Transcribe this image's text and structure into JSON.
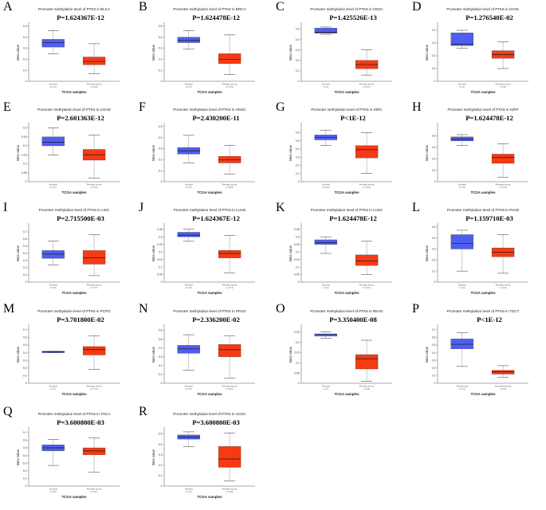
{
  "colors": {
    "normal_box": "#4f5ef0",
    "tumor_box": "#f63a14",
    "median": "#1a1a1a",
    "whisker": "#333333",
    "axis": "#555555"
  },
  "chart_data": [
    {
      "letter": "A",
      "type": "box",
      "title": "Promoter methylation level of PTK6 in BLCA",
      "pvalue": "P=1.624367E-12",
      "ylabel": "Beta value",
      "xlabel": "TCGA samples",
      "categories": [
        {
          "name": "Normal",
          "n": "(n=21)"
        },
        {
          "name": "Primary tumor",
          "n": "(n=418)"
        }
      ],
      "yticks": [
        0,
        0.1,
        0.2,
        0.3,
        0.4,
        0.5
      ],
      "ylim": [
        0,
        0.52
      ],
      "boxes": [
        {
          "min": 0.25,
          "q1": 0.31,
          "median": 0.35,
          "q3": 0.38,
          "max": 0.46
        },
        {
          "min": 0.07,
          "q1": 0.15,
          "median": 0.18,
          "q3": 0.22,
          "max": 0.34
        }
      ]
    },
    {
      "letter": "B",
      "type": "box",
      "title": "Promoter methylation level of PTK6 in BRCA",
      "pvalue": "P=1.624478E-12",
      "ylabel": "Beta value",
      "xlabel": "TCGA samples",
      "categories": [
        {
          "name": "Normal",
          "n": "(n=97)"
        },
        {
          "name": "Primary tumor",
          "n": "(n=793)"
        }
      ],
      "yticks": [
        0,
        0.1,
        0.2,
        0.3,
        0.4,
        0.5
      ],
      "ylim": [
        0,
        0.52
      ],
      "boxes": [
        {
          "min": 0.29,
          "q1": 0.35,
          "median": 0.37,
          "q3": 0.4,
          "max": 0.46
        },
        {
          "min": 0.06,
          "q1": 0.16,
          "median": 0.2,
          "q3": 0.25,
          "max": 0.42
        }
      ]
    },
    {
      "letter": "C",
      "type": "box",
      "title": "Promoter methylation level of PTK6 in CESC",
      "pvalue": "P=1.425526E-13",
      "ylabel": "Beta value",
      "xlabel": "TCGA samples",
      "categories": [
        {
          "name": "Normal",
          "n": "(n=3)"
        },
        {
          "name": "Primary tumor",
          "n": "(n=307)"
        }
      ],
      "yticks": [
        0,
        0.1,
        0.2,
        0.3,
        0.4,
        0.5
      ],
      "ylim": [
        0,
        0.55
      ],
      "boxes": [
        {
          "min": 0.45,
          "q1": 0.46,
          "median": 0.47,
          "q3": 0.51,
          "max": 0.52
        },
        {
          "min": 0.06,
          "q1": 0.12,
          "median": 0.16,
          "q3": 0.2,
          "max": 0.3
        }
      ]
    },
    {
      "letter": "D",
      "type": "box",
      "title": "Promoter methylation level of PTK6 in CHOL",
      "pvalue": "P=1.276540E-02",
      "ylabel": "Beta value",
      "xlabel": "TCGA samples",
      "categories": [
        {
          "name": "Normal",
          "n": "(n=9)"
        },
        {
          "name": "Primary tumor",
          "n": "(n=36)"
        }
      ],
      "yticks": [
        0,
        0.1,
        0.2,
        0.3,
        0.4
      ],
      "ylim": [
        0,
        0.45
      ],
      "boxes": [
        {
          "min": 0.26,
          "q1": 0.28,
          "median": 0.29,
          "q3": 0.38,
          "max": 0.4
        },
        {
          "min": 0.1,
          "q1": 0.18,
          "median": 0.21,
          "q3": 0.24,
          "max": 0.31
        }
      ]
    },
    {
      "letter": "E",
      "type": "box",
      "title": "Promoter methylation level of PTK6 in COAD",
      "pvalue": "P=2.601363E-12",
      "ylabel": "Beta value",
      "xlabel": "TCGA samples",
      "categories": [
        {
          "name": "Normal",
          "n": "(n=37)"
        },
        {
          "name": "Primary tumor",
          "n": "(n=313)"
        }
      ],
      "yticks": [
        0,
        0.05,
        0.1,
        0.15,
        0.2,
        0.25,
        0.3
      ],
      "ylim": [
        0,
        0.32
      ],
      "boxes": [
        {
          "min": 0.15,
          "q1": 0.2,
          "median": 0.22,
          "q3": 0.25,
          "max": 0.3
        },
        {
          "min": 0.02,
          "q1": 0.12,
          "median": 0.15,
          "q3": 0.18,
          "max": 0.26
        }
      ]
    },
    {
      "letter": "F",
      "type": "box",
      "title": "Promoter methylation level of PTK6 in HNSC",
      "pvalue": "P=2.430200E-11",
      "ylabel": "Beta value",
      "xlabel": "TCGA samples",
      "categories": [
        {
          "name": "Normal",
          "n": "(n=50)"
        },
        {
          "name": "Primary tumor",
          "n": "(n=528)"
        }
      ],
      "yticks": [
        0,
        0.1,
        0.2,
        0.3,
        0.4,
        0.5
      ],
      "ylim": [
        0,
        0.52
      ],
      "boxes": [
        {
          "min": 0.17,
          "q1": 0.25,
          "median": 0.28,
          "q3": 0.31,
          "max": 0.42
        },
        {
          "min": 0.07,
          "q1": 0.17,
          "median": 0.2,
          "q3": 0.23,
          "max": 0.33
        }
      ]
    },
    {
      "letter": "G",
      "type": "box",
      "title": "Promoter methylation level of PTK6 in KIRC",
      "pvalue": "P<1E-12",
      "ylabel": "Beta value",
      "xlabel": "TCGA samples",
      "categories": [
        {
          "name": "Normal",
          "n": "(n=160)"
        },
        {
          "name": "Primary tumor",
          "n": "(n=324)"
        }
      ],
      "yticks": [
        0,
        0.1,
        0.2,
        0.3,
        0.4,
        0.5,
        0.6
      ],
      "ylim": [
        0,
        0.7
      ],
      "boxes": [
        {
          "min": 0.44,
          "q1": 0.51,
          "median": 0.54,
          "q3": 0.57,
          "max": 0.63
        },
        {
          "min": 0.1,
          "q1": 0.29,
          "median": 0.39,
          "q3": 0.44,
          "max": 0.6
        }
      ]
    },
    {
      "letter": "H",
      "type": "box",
      "title": "Promoter methylation level of PTK6 in KIRP",
      "pvalue": "P=1.624478E-12",
      "ylabel": "Beta value",
      "xlabel": "TCGA samples",
      "categories": [
        {
          "name": "Normal",
          "n": "(n=45)"
        },
        {
          "name": "Primary tumor",
          "n": "(n=275)"
        }
      ],
      "yticks": [
        0,
        0.2,
        0.4,
        0.6,
        0.8
      ],
      "ylim": [
        0,
        1.0
      ],
      "boxes": [
        {
          "min": 0.63,
          "q1": 0.71,
          "median": 0.74,
          "q3": 0.78,
          "max": 0.82
        },
        {
          "min": 0.08,
          "q1": 0.32,
          "median": 0.42,
          "q3": 0.48,
          "max": 0.66
        }
      ]
    },
    {
      "letter": "I",
      "type": "box",
      "title": "Promoter methylation level of PTK6 in LIHC",
      "pvalue": "P=2.715500E-03",
      "ylabel": "Beta value",
      "xlabel": "TCGA samples",
      "categories": [
        {
          "name": "Normal",
          "n": "(n=50)"
        },
        {
          "name": "Primary tumor",
          "n": "(n=377)"
        }
      ],
      "yticks": [
        0,
        0.1,
        0.2,
        0.3,
        0.4,
        0.5,
        0.6,
        0.7
      ],
      "ylim": [
        0,
        0.8
      ],
      "boxes": [
        {
          "min": 0.24,
          "q1": 0.33,
          "median": 0.39,
          "q3": 0.44,
          "max": 0.57
        },
        {
          "min": 0.09,
          "q1": 0.25,
          "median": 0.34,
          "q3": 0.44,
          "max": 0.66
        }
      ]
    },
    {
      "letter": "J",
      "type": "box",
      "title": "Promoter methylation level of PTK6 in LUAD",
      "pvalue": "P=1.624367E-12",
      "ylabel": "Beta value",
      "xlabel": "TCGA samples",
      "categories": [
        {
          "name": "Normal",
          "n": "(n=32)"
        },
        {
          "name": "Primary tumor",
          "n": "(n=473)"
        }
      ],
      "yticks": [
        0,
        0.05,
        0.1,
        0.15,
        0.2,
        0.25,
        0.3,
        0.35
      ],
      "ylim": [
        0,
        0.38
      ],
      "boxes": [
        {
          "min": 0.27,
          "q1": 0.3,
          "median": 0.31,
          "q3": 0.33,
          "max": 0.35
        },
        {
          "min": 0.06,
          "q1": 0.16,
          "median": 0.19,
          "q3": 0.21,
          "max": 0.31
        }
      ]
    },
    {
      "letter": "K",
      "type": "box",
      "title": "Promoter methylation level of PTK6 in LUSC",
      "pvalue": "P=1.624478E-12",
      "ylabel": "Beta value",
      "xlabel": "TCGA samples",
      "categories": [
        {
          "name": "Normal",
          "n": "(n=42)"
        },
        {
          "name": "Primary tumor",
          "n": "(n=370)"
        }
      ],
      "yticks": [
        0,
        0.05,
        0.1,
        0.15,
        0.2,
        0.25,
        0.3,
        0.35
      ],
      "ylim": [
        0,
        0.38
      ],
      "boxes": [
        {
          "min": 0.19,
          "q1": 0.25,
          "median": 0.26,
          "q3": 0.28,
          "max": 0.3
        },
        {
          "min": 0.05,
          "q1": 0.11,
          "median": 0.14,
          "q3": 0.18,
          "max": 0.27
        }
      ]
    },
    {
      "letter": "L",
      "type": "box",
      "title": "Promoter methylation level of PTK6 in PAAD",
      "pvalue": "P=1.159710E-03",
      "ylabel": "Beta value",
      "xlabel": "TCGA samples",
      "categories": [
        {
          "name": "Normal",
          "n": "(n=10)"
        },
        {
          "name": "Primary tumor",
          "n": "(n=184)"
        }
      ],
      "yticks": [
        0,
        0.1,
        0.2,
        0.3,
        0.4,
        0.5
      ],
      "ylim": [
        0,
        0.52
      ],
      "boxes": [
        {
          "min": 0.1,
          "q1": 0.3,
          "median": 0.35,
          "q3": 0.43,
          "max": 0.47
        },
        {
          "min": 0.08,
          "q1": 0.23,
          "median": 0.27,
          "q3": 0.31,
          "max": 0.43
        }
      ]
    },
    {
      "letter": "M",
      "type": "box",
      "title": "Promoter methylation level of PTK6 in PCPG",
      "pvalue": "P=3.701800E-02",
      "ylabel": "Beta value",
      "xlabel": "TCGA samples",
      "categories": [
        {
          "name": "Normal",
          "n": "(n=3)"
        },
        {
          "name": "Primary tumor",
          "n": "(n=179)"
        }
      ],
      "yticks": [
        0,
        0.1,
        0.2,
        0.3,
        0.4,
        0.5,
        0.6,
        0.7
      ],
      "ylim": [
        0,
        0.75
      ],
      "boxes": [
        {
          "min": 0.4,
          "q1": 0.4,
          "median": 0.41,
          "q3": 0.42,
          "max": 0.42
        },
        {
          "min": 0.18,
          "q1": 0.37,
          "median": 0.44,
          "q3": 0.48,
          "max": 0.62
        }
      ]
    },
    {
      "letter": "N",
      "type": "box",
      "title": "Promoter methylation level of PTK6 in PRAD",
      "pvalue": "P=2.336200E-02",
      "ylabel": "Beta value",
      "xlabel": "TCGA samples",
      "categories": [
        {
          "name": "Normal",
          "n": "(n=50)"
        },
        {
          "name": "Primary tumor",
          "n": "(n=502)"
        }
      ],
      "yticks": [
        0,
        0.1,
        0.2,
        0.3,
        0.4,
        0.5,
        0.6
      ],
      "ylim": [
        0,
        0.65
      ],
      "boxes": [
        {
          "min": 0.15,
          "q1": 0.34,
          "median": 0.39,
          "q3": 0.43,
          "max": 0.55
        },
        {
          "min": 0.06,
          "q1": 0.3,
          "median": 0.38,
          "q3": 0.44,
          "max": 0.54
        }
      ]
    },
    {
      "letter": "O",
      "type": "box",
      "title": "Promoter methylation level of PTK6 in READ",
      "pvalue": "P=3.350400E-08",
      "ylabel": "Beta value",
      "xlabel": "TCGA samples",
      "categories": [
        {
          "name": "Normal",
          "n": "(n=7)"
        },
        {
          "name": "Primary tumor",
          "n": "(n=98)"
        }
      ],
      "yticks": [
        0,
        0.05,
        0.1,
        0.15,
        0.2,
        0.25
      ],
      "ylim": [
        0,
        0.28
      ],
      "boxes": [
        {
          "min": 0.22,
          "q1": 0.23,
          "median": 0.24,
          "q3": 0.24,
          "max": 0.25
        },
        {
          "min": 0.01,
          "q1": 0.07,
          "median": 0.12,
          "q3": 0.14,
          "max": 0.21
        }
      ]
    },
    {
      "letter": "P",
      "type": "box",
      "title": "Promoter methylation level of PTK6 in TGCT",
      "pvalue": "P<1E-12",
      "ylabel": "Beta value",
      "xlabel": "TCGA samples",
      "categories": [
        {
          "name": "Seminoma",
          "n": "(n=63)"
        },
        {
          "name": "Non-seminoma",
          "n": "(n=69)"
        }
      ],
      "yticks": [
        0,
        0.1,
        0.2,
        0.3,
        0.4,
        0.5,
        0.6,
        0.7
      ],
      "ylim": [
        0,
        0.75
      ],
      "boxes": [
        {
          "min": 0.22,
          "q1": 0.45,
          "median": 0.51,
          "q3": 0.58,
          "max": 0.66
        },
        {
          "min": 0.08,
          "q1": 0.12,
          "median": 0.15,
          "q3": 0.17,
          "max": 0.23
        }
      ]
    },
    {
      "letter": "Q",
      "type": "box",
      "title": "Promoter methylation level of PTK6 in THCA",
      "pvalue": "P=3.600800E-03",
      "ylabel": "Beta value",
      "xlabel": "TCGA samples",
      "categories": [
        {
          "name": "Normal",
          "n": "(n=56)"
        },
        {
          "name": "Primary tumor",
          "n": "(n=507)"
        }
      ],
      "yticks": [
        0,
        0.1,
        0.2,
        0.3,
        0.4,
        0.5,
        0.6,
        0.7
      ],
      "ylim": [
        0,
        0.75
      ],
      "boxes": [
        {
          "min": 0.27,
          "q1": 0.46,
          "median": 0.5,
          "q3": 0.54,
          "max": 0.61
        },
        {
          "min": 0.18,
          "q1": 0.41,
          "median": 0.46,
          "q3": 0.5,
          "max": 0.63
        }
      ]
    },
    {
      "letter": "R",
      "type": "box",
      "title": "Promoter methylation level of PTK6 in UCEC",
      "pvalue": "P=3.600800E-03",
      "ylabel": "Beta value",
      "xlabel": "TCGA samples",
      "categories": [
        {
          "name": "Normal",
          "n": "(n=46)"
        },
        {
          "name": "Primary tumor",
          "n": "(n=438)"
        }
      ],
      "yticks": [
        0,
        0.1,
        0.2,
        0.3,
        0.4,
        0.5
      ],
      "ylim": [
        0,
        0.55
      ],
      "boxes": [
        {
          "min": 0.38,
          "q1": 0.45,
          "median": 0.47,
          "q3": 0.49,
          "max": 0.52
        },
        {
          "min": 0.05,
          "q1": 0.18,
          "median": 0.26,
          "q3": 0.38,
          "max": 0.51
        }
      ]
    }
  ]
}
